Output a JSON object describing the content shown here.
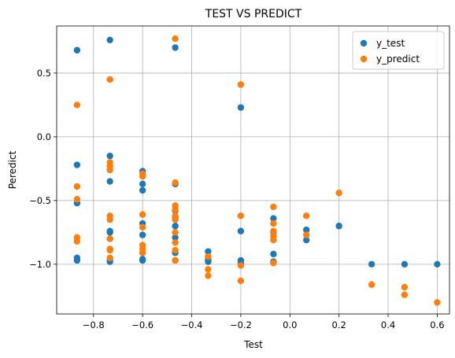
{
  "chart_data": {
    "type": "scatter",
    "title": "TEST VS PREDICT",
    "xlabel": "Test",
    "ylabel": "Peredict",
    "xlim": [
      -0.95,
      0.65
    ],
    "ylim": [
      -1.39,
      0.87
    ],
    "xticks": [
      -0.8,
      -0.6,
      -0.4,
      -0.2,
      0.0,
      0.2,
      0.4,
      0.6
    ],
    "xtick_labels": [
      "−0.8",
      "−0.6",
      "−0.4",
      "−0.2",
      "0.0",
      "0.2",
      "0.4",
      "0.6"
    ],
    "yticks": [
      -1.0,
      -0.5,
      0.0,
      0.5
    ],
    "ytick_labels": [
      "−1.0",
      "−0.5",
      "0.0",
      "0.5"
    ],
    "grid": true,
    "legend_position": "top-right",
    "series": [
      {
        "name": "y_test",
        "color": "#1f77b4",
        "points": [
          [
            -0.867,
            0.68
          ],
          [
            -0.867,
            -0.22
          ],
          [
            -0.867,
            -0.52
          ],
          [
            -0.867,
            -0.95
          ],
          [
            -0.867,
            -0.97
          ],
          [
            -0.733,
            0.76
          ],
          [
            -0.733,
            -0.15
          ],
          [
            -0.733,
            -0.35
          ],
          [
            -0.733,
            -0.74
          ],
          [
            -0.733,
            -0.75
          ],
          [
            -0.733,
            -0.8
          ],
          [
            -0.733,
            -0.96
          ],
          [
            -0.733,
            -0.98
          ],
          [
            -0.6,
            -0.27
          ],
          [
            -0.6,
            -0.37
          ],
          [
            -0.6,
            -0.42
          ],
          [
            -0.6,
            -0.68
          ],
          [
            -0.6,
            -0.77
          ],
          [
            -0.6,
            -0.91
          ],
          [
            -0.6,
            -0.96
          ],
          [
            -0.6,
            -0.97
          ],
          [
            -0.467,
            0.7
          ],
          [
            -0.467,
            -0.37
          ],
          [
            -0.467,
            -0.58
          ],
          [
            -0.467,
            -0.63
          ],
          [
            -0.467,
            -0.7
          ],
          [
            -0.467,
            -0.79
          ],
          [
            -0.467,
            -0.91
          ],
          [
            -0.467,
            -0.97
          ],
          [
            -0.333,
            -0.9
          ],
          [
            -0.333,
            -0.96
          ],
          [
            -0.333,
            -0.98
          ],
          [
            -0.2,
            0.23
          ],
          [
            -0.2,
            -0.74
          ],
          [
            -0.2,
            -0.97
          ],
          [
            -0.2,
            -0.99
          ],
          [
            -0.067,
            -0.64
          ],
          [
            -0.067,
            -0.75
          ],
          [
            -0.067,
            -0.92
          ],
          [
            -0.067,
            -0.98
          ],
          [
            0.067,
            -0.73
          ],
          [
            0.067,
            -0.81
          ],
          [
            0.2,
            -0.7
          ],
          [
            0.333,
            -1.0
          ],
          [
            0.467,
            -1.0
          ],
          [
            0.6,
            -1.0
          ]
        ]
      },
      {
        "name": "y_predict",
        "color": "#ff7f0e",
        "points": [
          [
            -0.867,
            0.25
          ],
          [
            -0.867,
            -0.39
          ],
          [
            -0.867,
            -0.49
          ],
          [
            -0.867,
            -0.79
          ],
          [
            -0.867,
            -0.82
          ],
          [
            -0.733,
            0.45
          ],
          [
            -0.733,
            -0.2
          ],
          [
            -0.733,
            -0.23
          ],
          [
            -0.733,
            -0.26
          ],
          [
            -0.733,
            -0.62
          ],
          [
            -0.733,
            -0.65
          ],
          [
            -0.733,
            -0.8
          ],
          [
            -0.733,
            -0.88
          ],
          [
            -0.733,
            -0.89
          ],
          [
            -0.733,
            -0.95
          ],
          [
            -0.6,
            -0.29
          ],
          [
            -0.6,
            -0.31
          ],
          [
            -0.6,
            -0.61
          ],
          [
            -0.6,
            -0.71
          ],
          [
            -0.6,
            -0.85
          ],
          [
            -0.6,
            -0.88
          ],
          [
            -0.6,
            -0.91
          ],
          [
            -0.467,
            0.77
          ],
          [
            -0.467,
            -0.36
          ],
          [
            -0.467,
            -0.54
          ],
          [
            -0.467,
            -0.57
          ],
          [
            -0.467,
            -0.62
          ],
          [
            -0.467,
            -0.65
          ],
          [
            -0.467,
            -0.75
          ],
          [
            -0.467,
            -0.83
          ],
          [
            -0.467,
            -0.89
          ],
          [
            -0.467,
            -0.97
          ],
          [
            -0.333,
            -0.94
          ],
          [
            -0.333,
            -1.04
          ],
          [
            -0.333,
            -1.09
          ],
          [
            -0.2,
            0.41
          ],
          [
            -0.2,
            -0.62
          ],
          [
            -0.2,
            -1.01
          ],
          [
            -0.2,
            -1.13
          ],
          [
            -0.067,
            -0.55
          ],
          [
            -0.067,
            -0.68
          ],
          [
            -0.067,
            -0.74
          ],
          [
            -0.067,
            -0.78
          ],
          [
            -0.067,
            -0.81
          ],
          [
            -0.067,
            -0.99
          ],
          [
            0.067,
            -0.62
          ],
          [
            0.067,
            -0.77
          ],
          [
            0.2,
            -0.44
          ],
          [
            0.333,
            -1.16
          ],
          [
            0.467,
            -1.18
          ],
          [
            0.467,
            -1.24
          ],
          [
            0.6,
            -1.3
          ]
        ]
      }
    ]
  }
}
